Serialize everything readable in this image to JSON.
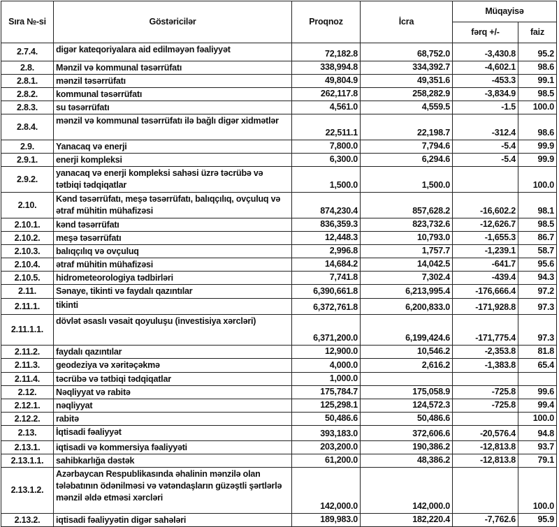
{
  "header": {
    "code": "Sıra №-si",
    "indicator": "Göstəricilər",
    "forecast": "Proqnoz",
    "actual": "İcra",
    "comparison": "Müqayisə",
    "difference": "fərq +/-",
    "percent": "faiz"
  },
  "rows": [
    {
      "code": "2.7.4.",
      "name": "digər kateqoriyalara aid edilməyən fəaliyyət",
      "forecast": "72,182.8",
      "actual": "68,752.0",
      "diff": "-3,430.8",
      "pct": "95.2"
    },
    {
      "code": "2.8.",
      "name": "Mənzil və kommunal təsərrüfatı",
      "forecast": "338,994.8",
      "actual": "334,392.7",
      "diff": "-4,602.1",
      "pct": "98.6"
    },
    {
      "code": "2.8.1.",
      "name": "mənzil təsərrüfatı",
      "forecast": "49,804.9",
      "actual": "49,351.6",
      "diff": "-453.3",
      "pct": "99.1"
    },
    {
      "code": "2.8.2.",
      "name": "kommunal təsərrüfatı",
      "forecast": "262,117.8",
      "actual": "258,282.9",
      "diff": "-3,834.9",
      "pct": "98.5"
    },
    {
      "code": "2.8.3.",
      "name": "su təsərrüfatı",
      "forecast": "4,561.0",
      "actual": "4,559.5",
      "diff": "-1.5",
      "pct": "100.0"
    },
    {
      "code": "2.8.4.",
      "name": "mənzil və kommunal təsərrüfatı ilə bağlı digər xidmətlər",
      "forecast": "22,511.1",
      "actual": "22,198.7",
      "diff": "-312.4",
      "pct": "98.6"
    },
    {
      "code": "2.9.",
      "name": "Yanacaq və enerji",
      "forecast": "7,800.0",
      "actual": "7,794.6",
      "diff": "-5.4",
      "pct": "99.9"
    },
    {
      "code": "2.9.1.",
      "name": "enerji kompleksi",
      "forecast": "6,300.0",
      "actual": "6,294.6",
      "diff": "-5.4",
      "pct": "99.9"
    },
    {
      "code": "2.9.2.",
      "name": "yanacaq və enerji kompleksi sahəsi üzrə təcrübə və tətbiqi tədqiqatlar",
      "forecast": "1,500.0",
      "actual": "1,500.0",
      "diff": "",
      "pct": "100.0"
    },
    {
      "code": "2.10.",
      "name": "Kənd təsərrüfatı, meşə təsərrüfatı, balıqçılıq, ovçuluq və ətraf mühitin mühafizəsi",
      "forecast": "874,230.4",
      "actual": "857,628.2",
      "diff": "-16,602.2",
      "pct": "98.1"
    },
    {
      "code": "2.10.1.",
      "name": "kənd təsərrüfatı",
      "forecast": "836,359.3",
      "actual": "823,732.6",
      "diff": "-12,626.7",
      "pct": "98.5"
    },
    {
      "code": "2.10.2.",
      "name": "meşə təsərrüfatı",
      "forecast": "12,448.3",
      "actual": "10,793.0",
      "diff": "-1,655.3",
      "pct": "86.7"
    },
    {
      "code": "2.10.3.",
      "name": "balıqçılıq və ovçuluq",
      "forecast": "2,996.8",
      "actual": "1,757.7",
      "diff": "-1,239.1",
      "pct": "58.7"
    },
    {
      "code": "2.10.4.",
      "name": "ətraf mühitin mühafizəsi",
      "forecast": "14,684.2",
      "actual": "14,042.5",
      "diff": "-641.7",
      "pct": "95.6"
    },
    {
      "code": "2.10.5.",
      "name": "hidrometeorologiya tədbirləri",
      "forecast": "7,741.8",
      "actual": "7,302.4",
      "diff": "-439.4",
      "pct": "94.3"
    },
    {
      "code": "2.11.",
      "name": "Sənaye, tikinti və faydalı qazıntılar",
      "forecast": "6,390,661.8",
      "actual": "6,213,995.4",
      "diff": "-176,666.4",
      "pct": "97.2"
    },
    {
      "code": "2.11.1.",
      "name": "tikinti",
      "forecast": "6,372,761.8",
      "actual": "6,200,833.0",
      "diff": "-171,928.8",
      "pct": "97.3"
    },
    {
      "code": "2.11.1.1.",
      "name": "dövlət əsaslı vəsait qoyuluşu (investisiya xərcləri)",
      "forecast": "6,371,200.0",
      "actual": "6,199,424.6",
      "diff": "-171,775.4",
      "pct": "97.3"
    },
    {
      "code": "2.11.2.",
      "name": "faydalı qazıntılar",
      "forecast": "12,900.0",
      "actual": "10,546.2",
      "diff": "-2,353.8",
      "pct": "81.8"
    },
    {
      "code": "2.11.3.",
      "name": "geodeziya və xəritəçəkmə",
      "forecast": "4,000.0",
      "actual": "2,616.2",
      "diff": "-1,383.8",
      "pct": "65.4"
    },
    {
      "code": "2.11.4.",
      "name": "təcrübə və tətbiqi tədqiqatlar",
      "forecast": "1,000.0",
      "actual": "",
      "diff": "",
      "pct": ""
    },
    {
      "code": "2.12.",
      "name": "Nəqliyyat və rabitə",
      "forecast": "175,784.7",
      "actual": "175,058.9",
      "diff": "-725.8",
      "pct": "99.6"
    },
    {
      "code": "2.12.1.",
      "name": "nəqliyyat",
      "forecast": "125,298.1",
      "actual": "124,572.3",
      "diff": "-725.8",
      "pct": "99.4"
    },
    {
      "code": "2.12.2.",
      "name": "rabitə",
      "forecast": "50,486.6",
      "actual": "50,486.6",
      "diff": "",
      "pct": "100.0"
    },
    {
      "code": "2.13.",
      "name": "İqtisadi fəaliyyət",
      "forecast": "393,183.0",
      "actual": "372,606.6",
      "diff": "-20,576.4",
      "pct": "94.8"
    },
    {
      "code": "2.13.1.",
      "name": "iqtisadi və kommersiya fəaliyyəti",
      "forecast": "203,200.0",
      "actual": "190,386.2",
      "diff": "-12,813.8",
      "pct": "93.7"
    },
    {
      "code": "2.13.1.1.",
      "name": "sahibkarlığa dəstək",
      "forecast": "61,200.0",
      "actual": "48,386.2",
      "diff": "-12,813.8",
      "pct": "79.1"
    },
    {
      "code": "2.13.1.2.",
      "name": "Azərbaycan Respublikasında əhalinin mənzilə olan tələbatının ödənilməsi və vətəndaşların güzəştli şərtlərlə mənzil əldə etməsi xərcləri",
      "forecast": "142,000.0",
      "actual": "142,000.0",
      "diff": "",
      "pct": "100.0"
    },
    {
      "code": "2.13.2.",
      "name": "iqtisadi fəaliyyətin digər sahələri",
      "forecast": "189,983.0",
      "actual": "182,220.4",
      "diff": "-7,762.6",
      "pct": "95.9"
    }
  ]
}
